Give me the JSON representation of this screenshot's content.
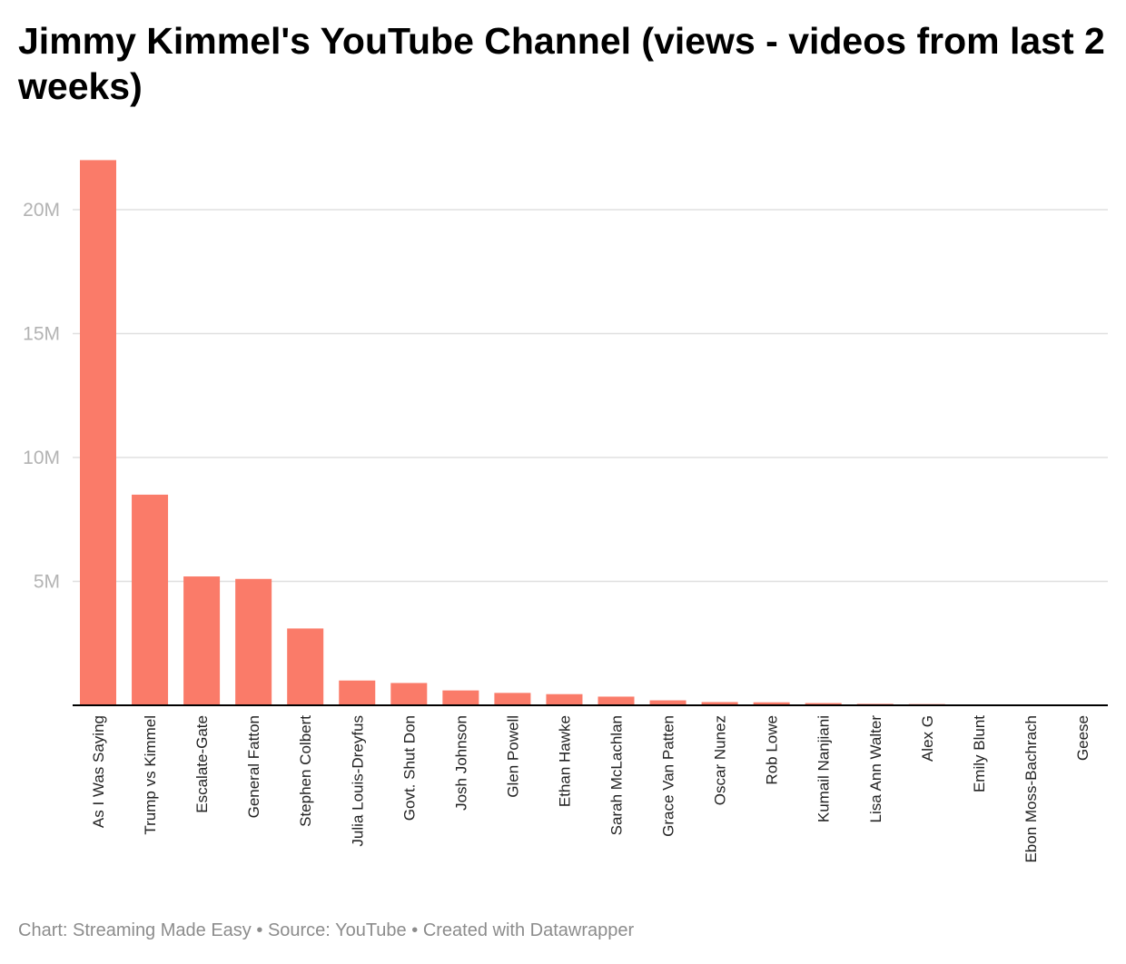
{
  "title": "Jimmy Kimmel's YouTube Channel (views - videos from last 2 weeks)",
  "footer": {
    "chart_label": "Chart:",
    "chart_by": "Streaming Made Easy",
    "separator": "•",
    "source_label": "Source:",
    "source": "YouTube",
    "created_with": "Created with Datawrapper"
  },
  "colors": {
    "bar": "#fa7b69",
    "grid": "#e0e0e0",
    "baseline": "#000000",
    "tick_text": "#b3b3b3",
    "footer_text": "#8c8c8c"
  },
  "chart_data": {
    "type": "bar",
    "title": "Jimmy Kimmel's YouTube Channel (views - videos from last 2 weeks)",
    "xlabel": "",
    "ylabel": "",
    "ylim": [
      0,
      22000000
    ],
    "yticks": [
      {
        "value": 5000000,
        "label": "5M"
      },
      {
        "value": 10000000,
        "label": "10M"
      },
      {
        "value": 15000000,
        "label": "15M"
      },
      {
        "value": 20000000,
        "label": "20M"
      }
    ],
    "grid": true,
    "categories": [
      "As I Was Saying",
      "Trump vs Kimmel",
      "Escalate-Gate",
      "General Fatton",
      "Stephen Colbert",
      "Julia Louis-Dreyfus",
      "Govt. Shut Don",
      "Josh Johnson",
      "Glen Powell",
      "Ethan Hawke",
      "Sarah McLachlan",
      "Grace Van Patten",
      "Oscar Nunez",
      "Rob Lowe",
      "Kumail Nanjiani",
      "Lisa Ann Walter",
      "Alex G",
      "Emily Blunt",
      "Ebon Moss-Bachrach",
      "Geese"
    ],
    "values": [
      22000000,
      8500000,
      5200000,
      5100000,
      3100000,
      1000000,
      900000,
      600000,
      500000,
      450000,
      350000,
      200000,
      130000,
      120000,
      90000,
      60000,
      50000,
      20000,
      15000,
      10000
    ]
  }
}
